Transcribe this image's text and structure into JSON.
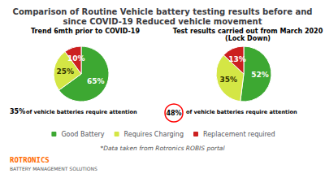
{
  "title": "Comparison of Routine Vehicle battery testing results before and\nsince COVID-19 Reduced vehicle movement",
  "annotations": [
    "35%",
    "of vehicle batteries require attention",
    "48%",
    "of vehicle batteries require attention",
    "*Data taken from Rotronics ROBIS portal",
    "ROTRONICS",
    "BATTERY MANAGEMENT SOLUTIONS"
  ],
  "chart_data": [
    {
      "type": "pie",
      "title": "Trend 6mth prior to COVID-19",
      "categories": [
        "Good Battery",
        "Requires Charging",
        "Replacement required"
      ],
      "values": [
        65,
        25,
        10
      ],
      "value_labels": [
        "65%",
        "25%",
        "10%"
      ],
      "colors": [
        "#3DA832",
        "#D4E645",
        "#CC2020"
      ],
      "data_labels": true,
      "legend": "bottom"
    },
    {
      "type": "pie",
      "title": "Test results carried out from March 2020",
      "subtitle": "(Lock Down)",
      "categories": [
        "Good Battery",
        "Requires Charging",
        "Replacement required"
      ],
      "values": [
        52,
        35,
        13
      ],
      "value_labels": [
        "52%",
        "35%",
        "13%"
      ],
      "colors": [
        "#3DA832",
        "#D4E645",
        "#CC2020"
      ],
      "data_labels": true,
      "legend": "bottom"
    }
  ]
}
